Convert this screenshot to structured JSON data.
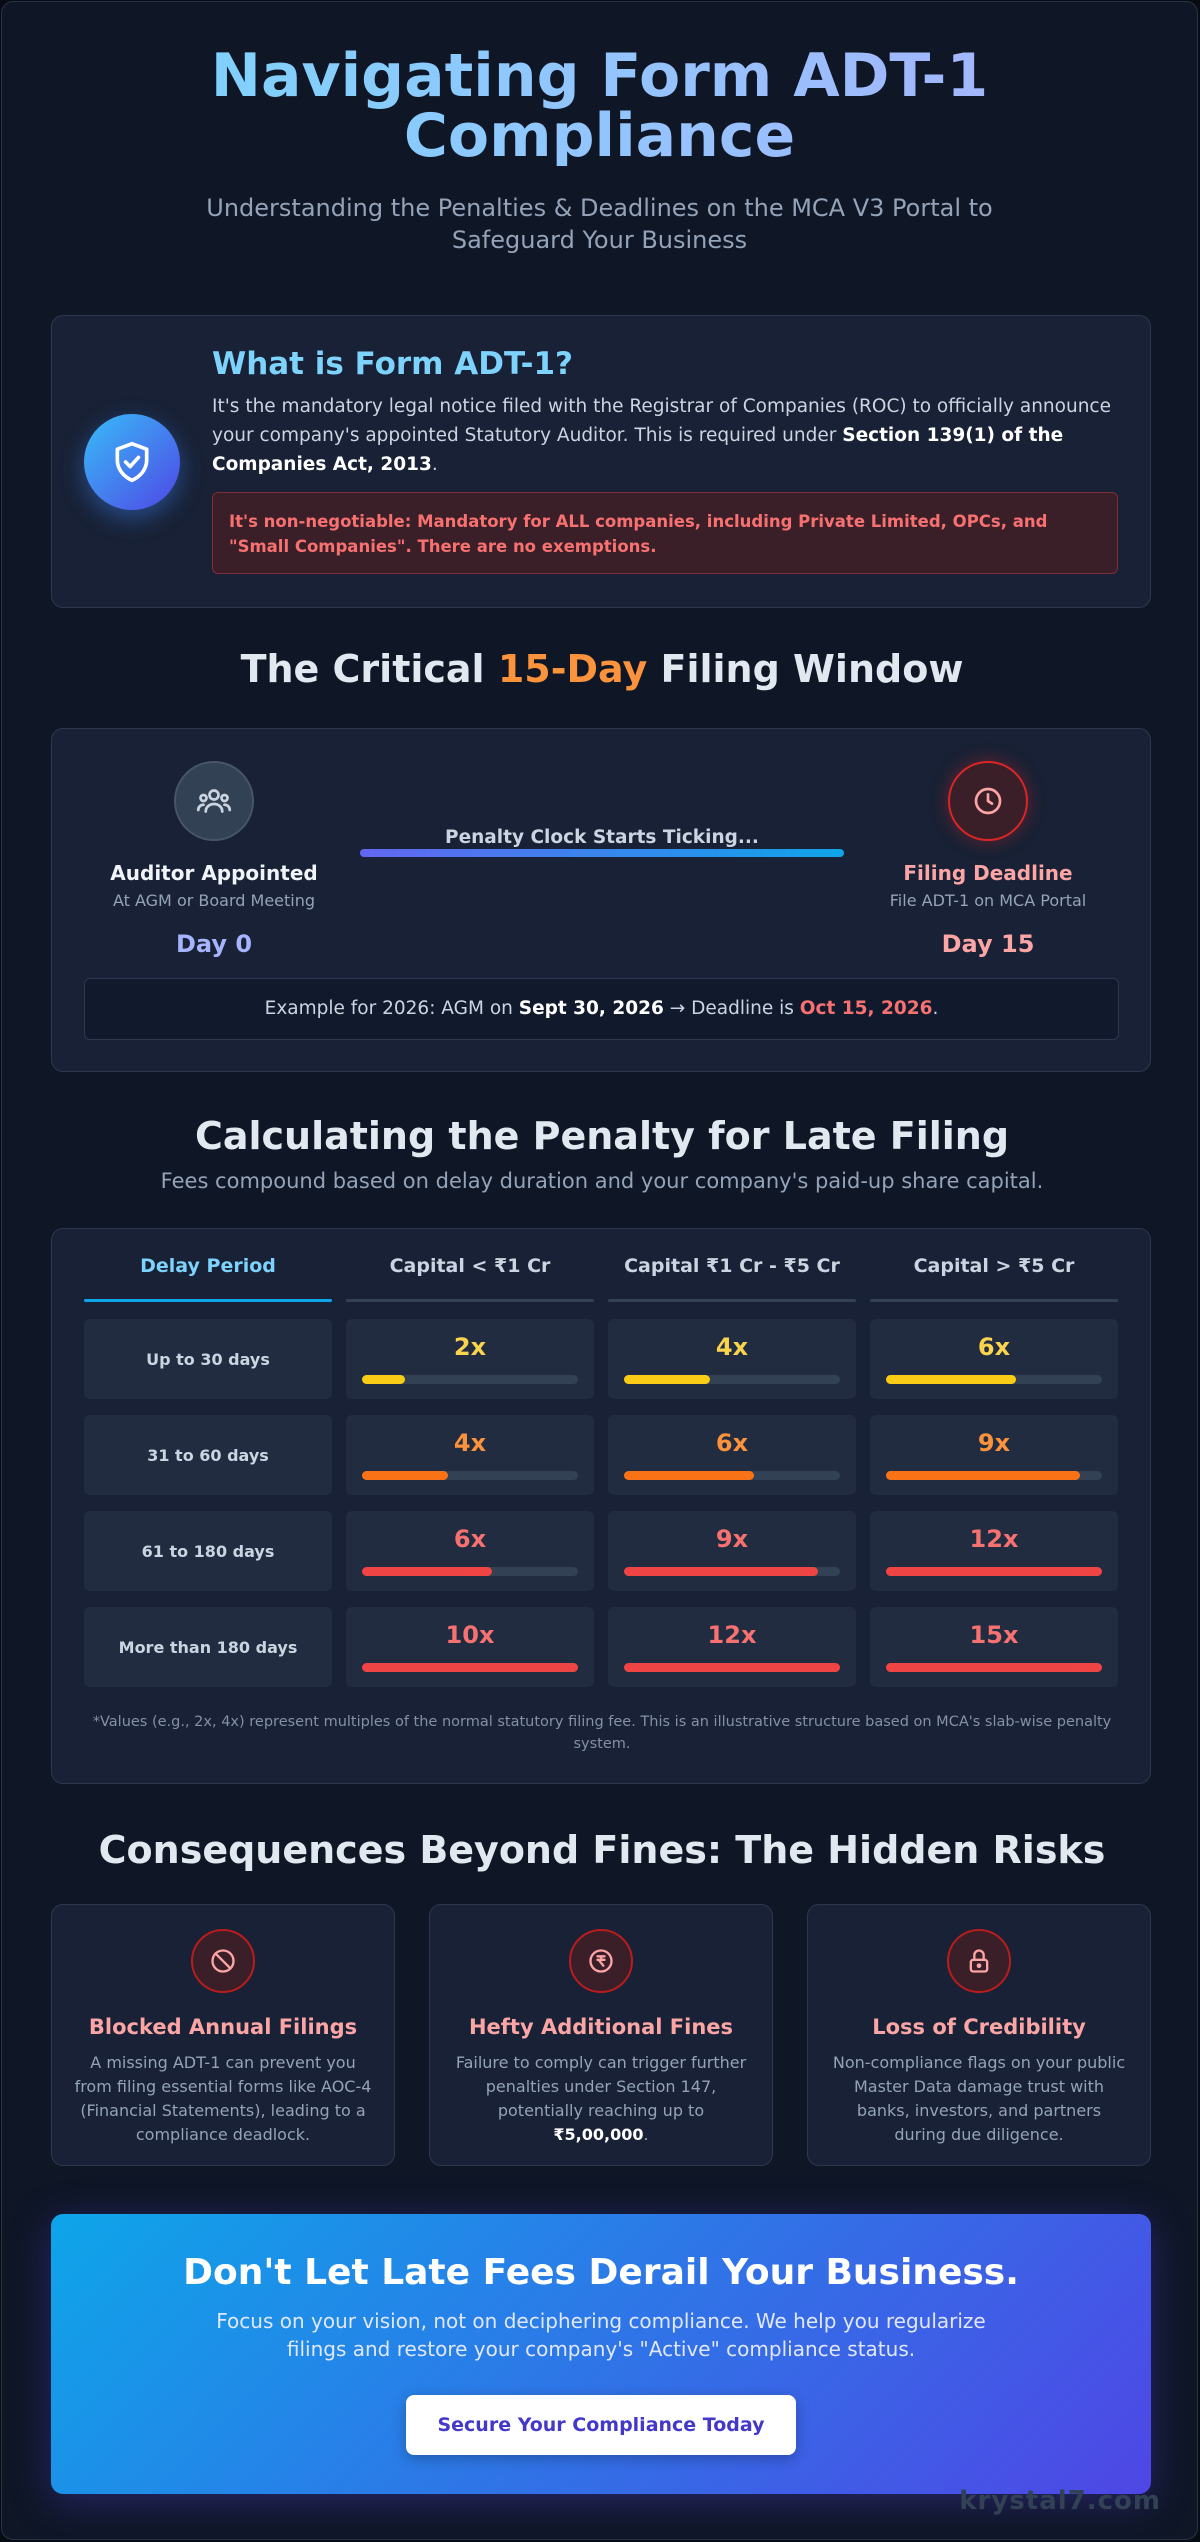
{
  "hero": {
    "title": "Navigating Form ADT-1 Compliance",
    "subtitle": "Understanding the Penalties & Deadlines on the MCA V3 Portal to Safeguard Your Business"
  },
  "what": {
    "icon": "shield-check-icon",
    "heading": "What is Form ADT-1?",
    "desc_prefix": "It's the mandatory legal notice filed with the Registrar of Companies (ROC) to officially announce your company's appointed Statutory Auditor. This is required under ",
    "desc_bold": "Section 139(1) of the Companies Act, 2013",
    "desc_suffix": ".",
    "warning": "It's non-negotiable: Mandatory for ALL companies, including Private Limited, OPCs, and \"Small Companies\". There are no exemptions."
  },
  "window": {
    "title_pre": "The Critical ",
    "title_highlight": "15-Day",
    "title_post": " Filing Window",
    "start": {
      "icon": "users-icon",
      "title": "Auditor Appointed",
      "sub": "At AGM or Board Meeting",
      "day": "Day 0"
    },
    "bar_label": "Penalty Clock Starts Ticking...",
    "end": {
      "icon": "clock-icon",
      "title": "Filing Deadline",
      "sub": "File ADT-1 on MCA Portal",
      "day": "Day 15"
    },
    "example_pre": "Example for 2026: AGM on ",
    "example_date": "Sept 30, 2026",
    "example_mid": " → Deadline is ",
    "example_deadline": "Oct 15, 2026",
    "example_post": "."
  },
  "penalty": {
    "title": "Calculating the Penalty for Late Filing",
    "subtitle": "Fees compound based on delay duration and your company's paid-up share capital.",
    "headers": [
      "Delay Period",
      "Capital < ₹1 Cr",
      "Capital ₹1 Cr - ₹5 Cr",
      "Capital > ₹5 Cr"
    ],
    "rows": [
      {
        "label": "Up to 30 days",
        "cells": [
          {
            "mult": "2x",
            "level": 0.2,
            "color": "#facc15"
          },
          {
            "mult": "4x",
            "level": 0.4,
            "color": "#facc15"
          },
          {
            "mult": "6x",
            "level": 0.6,
            "color": "#facc15"
          }
        ]
      },
      {
        "label": "31 to 60 days",
        "cells": [
          {
            "mult": "4x",
            "level": 0.4,
            "color": "#f97316"
          },
          {
            "mult": "6x",
            "level": 0.6,
            "color": "#f97316"
          },
          {
            "mult": "9x",
            "level": 0.9,
            "color": "#f97316"
          }
        ]
      },
      {
        "label": "61 to 180 days",
        "cells": [
          {
            "mult": "6x",
            "level": 0.6,
            "color": "#ef4444"
          },
          {
            "mult": "9x",
            "level": 0.9,
            "color": "#ef4444"
          },
          {
            "mult": "12x",
            "level": 1.0,
            "color": "#ef4444"
          }
        ]
      },
      {
        "label": "More than 180 days",
        "cells": [
          {
            "mult": "10x",
            "level": 1.0,
            "color": "#ef4444"
          },
          {
            "mult": "12x",
            "level": 1.0,
            "color": "#ef4444"
          },
          {
            "mult": "15x",
            "level": 1.0,
            "color": "#ef4444"
          }
        ]
      }
    ],
    "footnote": "*Values (e.g., 2x, 4x) represent multiples of the normal statutory filing fee. This is an illustrative structure based on MCA's slab-wise penalty system."
  },
  "risks": {
    "title": "Consequences Beyond Fines: The Hidden Risks",
    "items": [
      {
        "icon": "blocked-icon",
        "title": "Blocked Annual Filings",
        "text": "A missing ADT-1 can prevent you from filing essential forms like AOC-4 (Financial Statements), leading to a compliance deadlock.",
        "bold": "",
        "post": ""
      },
      {
        "icon": "rupee-icon",
        "title": "Hefty Additional Fines",
        "text": "Failure to comply can trigger further penalties under Section 147, potentially reaching up to ",
        "bold": "₹5,00,000",
        "post": "."
      },
      {
        "icon": "lock-icon",
        "title": "Loss of Credibility",
        "text": "Non-compliance flags on your public Master Data damage trust with banks, investors, and partners during due diligence.",
        "bold": "",
        "post": ""
      }
    ]
  },
  "cta": {
    "title": "Don't Let Late Fees Derail Your Business.",
    "text": "Focus on your vision, not on deciphering compliance. We help you regularize filings and restore your company's \"Active\" compliance status.",
    "button": "Secure Your Compliance Today"
  },
  "watermark": "krystal7.com"
}
